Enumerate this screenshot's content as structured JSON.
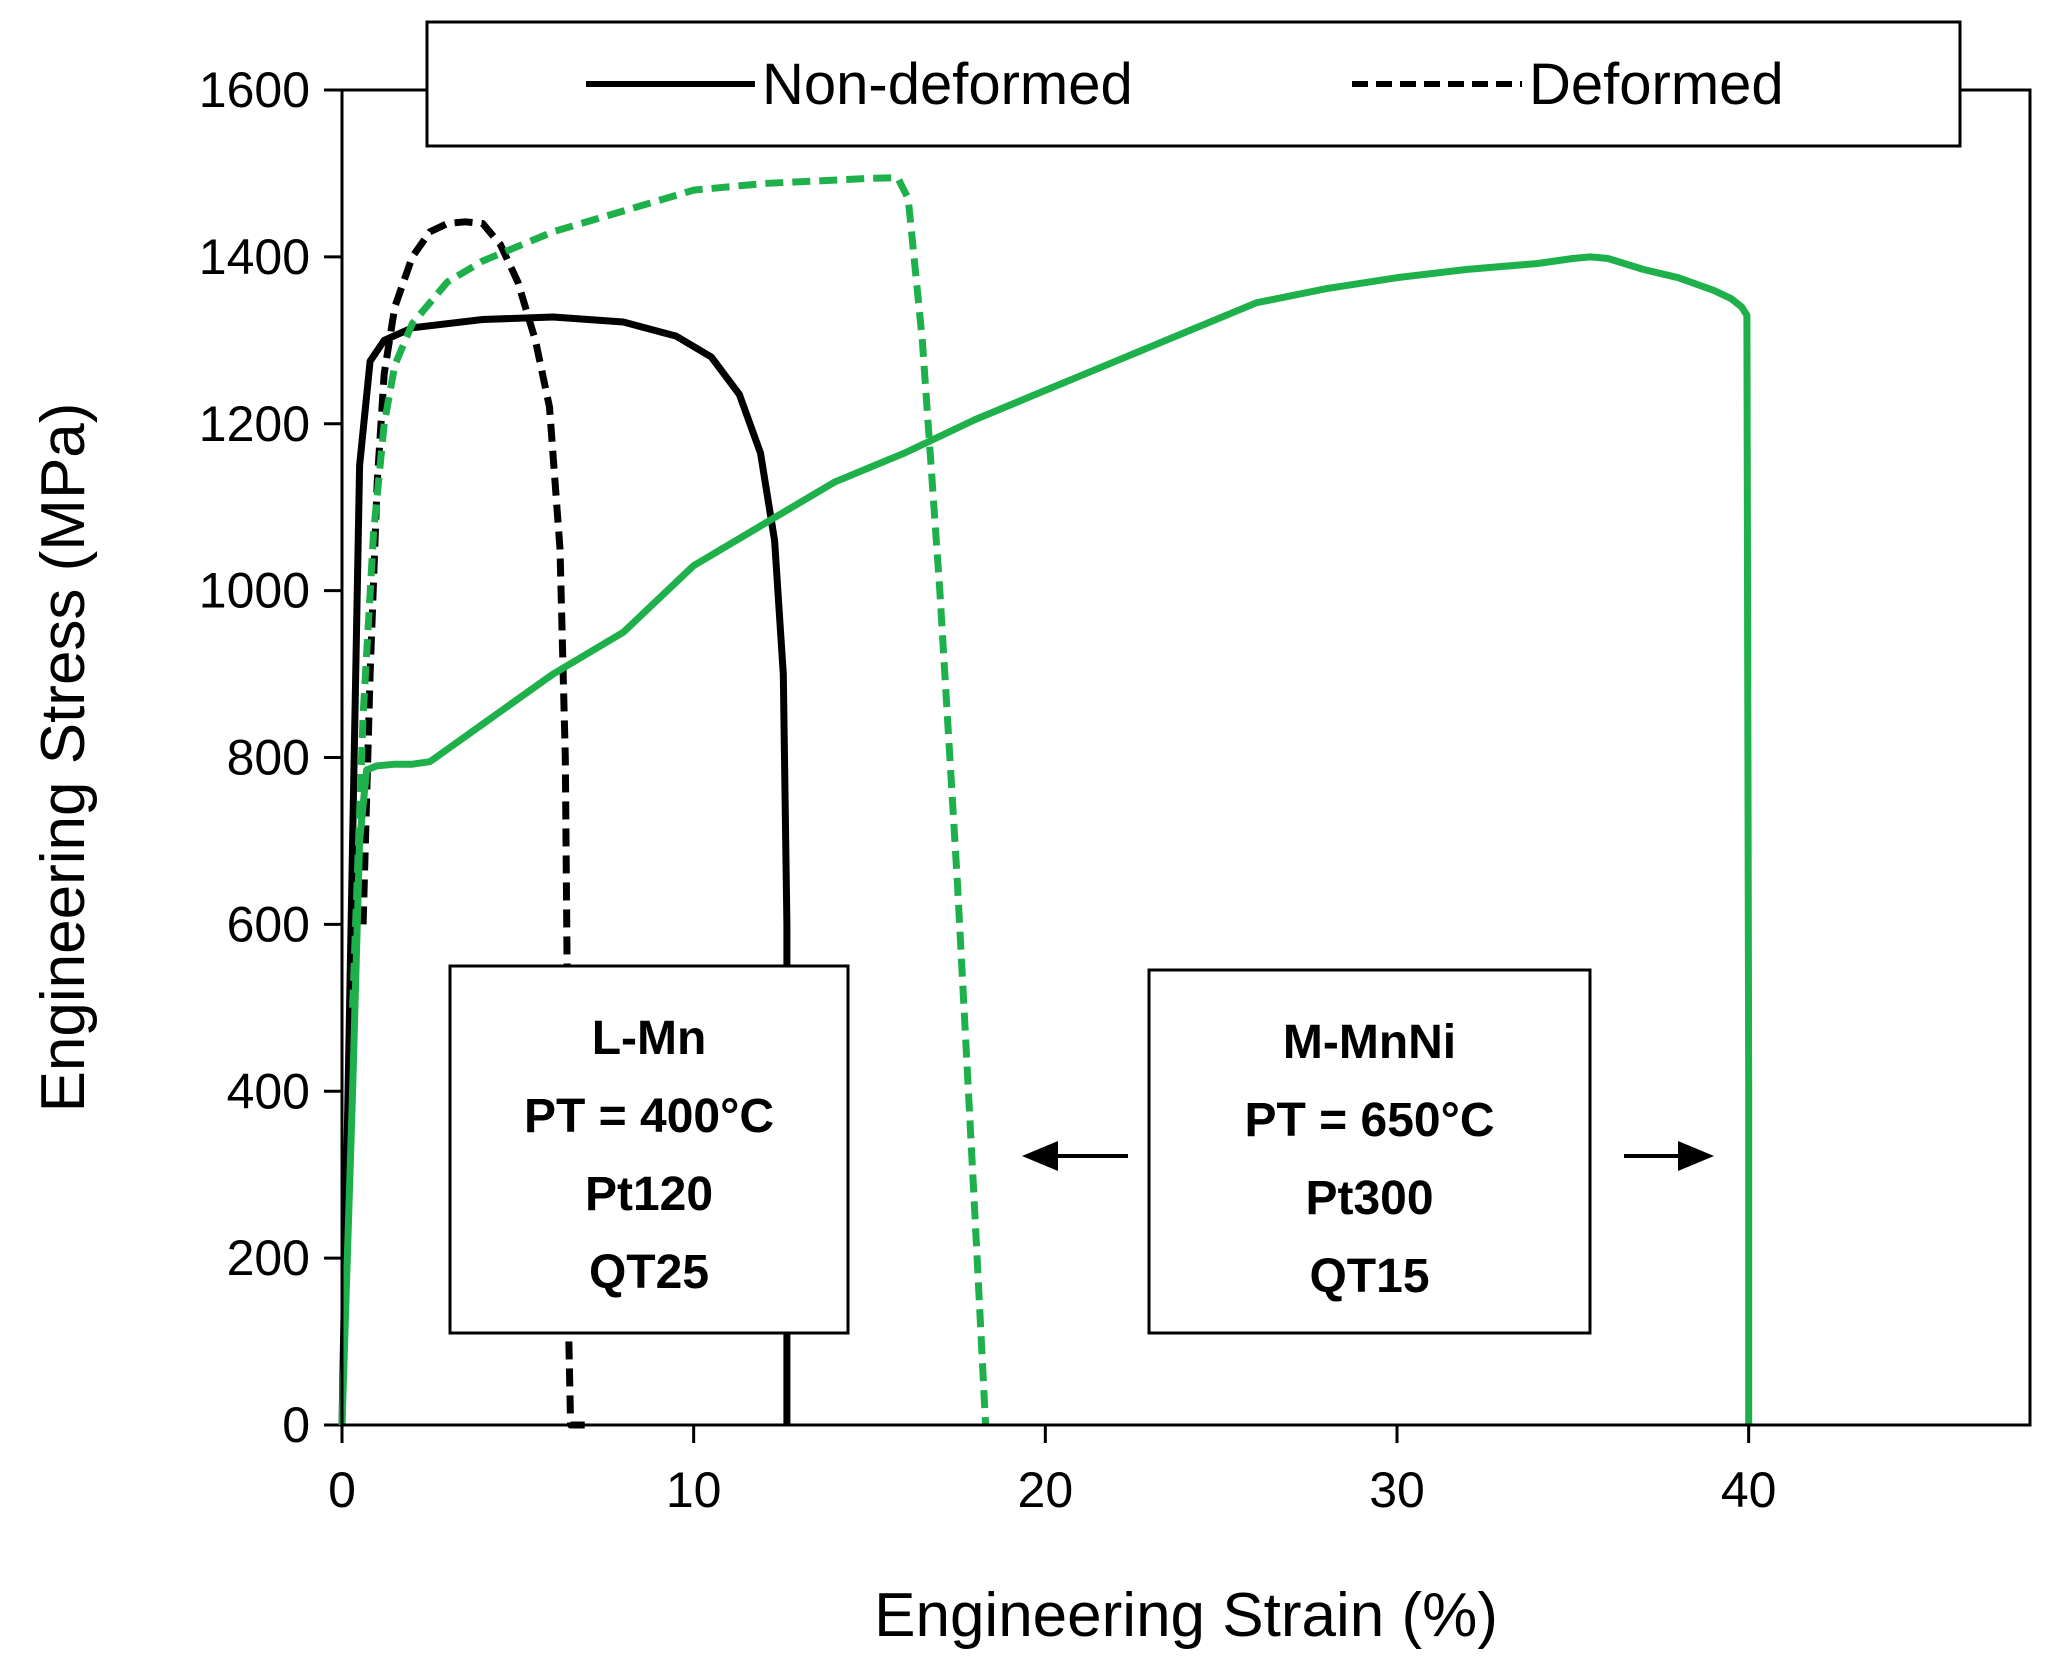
{
  "chart_data": {
    "type": "line",
    "xlabel": "Engineering Strain (%)",
    "ylabel": "Engineering Stress (MPa)",
    "xlim": [
      0,
      48
    ],
    "ylim": [
      0,
      1600
    ],
    "x_ticks": [
      0,
      10,
      20,
      30,
      40
    ],
    "y_ticks": [
      0,
      200,
      400,
      600,
      800,
      1000,
      1200,
      1400,
      1600
    ],
    "grid": false,
    "legend": {
      "placement": "top-center",
      "entries": [
        {
          "label": "Non-deformed",
          "style": "solid",
          "color": "#000000"
        },
        {
          "label": "Deformed",
          "style": "dashed",
          "color": "#000000"
        }
      ]
    },
    "series": [
      {
        "group": "L-Mn",
        "condition": "Non-deformed",
        "color": "#000000",
        "dash": "solid",
        "x": [
          0,
          0.3,
          0.5,
          0.8,
          1.2,
          2,
          4,
          6,
          8,
          9.5,
          10.5,
          11.3,
          11.9,
          12.3,
          12.55,
          12.65,
          12.65,
          12.65
        ],
        "y": [
          0,
          700,
          1150,
          1275,
          1300,
          1315,
          1325,
          1328,
          1322,
          1305,
          1280,
          1235,
          1165,
          1060,
          900,
          600,
          200,
          0
        ]
      },
      {
        "group": "L-Mn",
        "condition": "Deformed",
        "color": "#000000",
        "dash": "dashed",
        "x": [
          0.6,
          0.8,
          1.0,
          1.2,
          1.5,
          2.0,
          2.5,
          3.0,
          3.5,
          4.0,
          4.5,
          5.0,
          5.5,
          5.9,
          6.2,
          6.35,
          6.4,
          6.4,
          6.5,
          6.9
        ],
        "y": [
          600,
          900,
          1130,
          1260,
          1340,
          1400,
          1430,
          1440,
          1442,
          1440,
          1415,
          1370,
          1300,
          1220,
          1050,
          800,
          550,
          200,
          0,
          0
        ]
      },
      {
        "group": "M-MnNi",
        "condition": "Deformed",
        "color": "#1eb04a",
        "dash": "dashed",
        "x": [
          0.3,
          0.6,
          0.9,
          1.2,
          1.5,
          2,
          3,
          4,
          6,
          8,
          10,
          12,
          14,
          15,
          15.8,
          16.1,
          16.5,
          17,
          17.5,
          18.0,
          18.3
        ],
        "y": [
          500,
          850,
          1070,
          1200,
          1270,
          1320,
          1370,
          1395,
          1430,
          1455,
          1480,
          1488,
          1492,
          1494,
          1495,
          1470,
          1300,
          1000,
          650,
          250,
          0
        ]
      },
      {
        "group": "M-MnNi",
        "condition": "Non-deformed",
        "color": "#1eb04a",
        "dash": "solid",
        "x": [
          0,
          0.3,
          0.5,
          0.7,
          1.0,
          1.5,
          2,
          2.5,
          3,
          4,
          5,
          6,
          8,
          10,
          12,
          14,
          16,
          18,
          20,
          22,
          24,
          26,
          28,
          30,
          32,
          34,
          35,
          35.5,
          36,
          37,
          38,
          39,
          39.5,
          39.8,
          39.95,
          40.0,
          40.0
        ],
        "y": [
          0,
          400,
          700,
          785,
          790,
          792,
          792,
          795,
          810,
          840,
          870,
          900,
          950,
          1030,
          1080,
          1130,
          1165,
          1205,
          1240,
          1275,
          1310,
          1345,
          1362,
          1375,
          1385,
          1392,
          1398,
          1400,
          1398,
          1385,
          1375,
          1360,
          1350,
          1340,
          1330,
          400,
          0
        ]
      }
    ],
    "annotations": [
      {
        "name": "l-mn-box",
        "lines": [
          "L-Mn",
          "PT = 400°C",
          "Pt120",
          "QT25"
        ]
      },
      {
        "name": "m-mnni-box",
        "lines": [
          "M-MnNi",
          "PT = 650°C",
          "Pt300",
          "QT15"
        ]
      }
    ],
    "arrows": [
      {
        "direction": "left",
        "color": "#000000"
      },
      {
        "direction": "right",
        "color": "#000000"
      }
    ]
  }
}
